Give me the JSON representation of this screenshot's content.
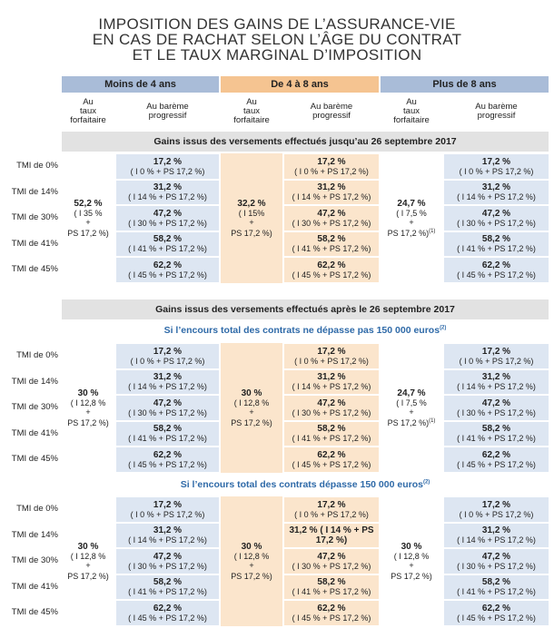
{
  "title": {
    "line1": "IMPOSITION DES GAINS DE L’ASSURANCE-VIE",
    "line2": "EN CAS DE RACHAT SELON L’ÂGE DU CONTRAT",
    "line3": "ET LE TAUX MARGINAL D’IMPOSITION"
  },
  "groups": [
    "Moins de 4 ans",
    "De 4 à 8 ans",
    "Plus de 8 ans"
  ],
  "col_forf": [
    "Au",
    "taux",
    "forfaitaire"
  ],
  "col_prog": [
    "Au barème",
    "progressif"
  ],
  "tmi_labels": [
    "TMI de 0%",
    "TMI de 14%",
    "TMI de 30%",
    "TMI de 41%",
    "TMI de 45%"
  ],
  "prog_values": [
    {
      "v": "17,2 %",
      "d": "( I 0 % + PS 17,2 %)"
    },
    {
      "v": "31,2 %",
      "d": "( I 14 % + PS 17,2 %)"
    },
    {
      "v": "47,2 %",
      "d": "( I 30 % + PS 17,2 %)"
    },
    {
      "v": "58,2 %",
      "d": "( I 41 % + PS 17,2 %)"
    },
    {
      "v": "62,2 %",
      "d": "( I 45 % + PS 17,2 %)"
    }
  ],
  "s1": {
    "heading": "Gains issus des versements effectués jusqu’au 26 septembre 2017",
    "forf": [
      {
        "v": "52,2 %",
        "a": "( I 35 %",
        "b": "+",
        "c": "PS 17,2 %)",
        "note": ""
      },
      {
        "v": "32,2 %",
        "a": "( I 15%",
        "b": "+",
        "c": "PS 17,2 %)",
        "note": ""
      },
      {
        "v": "24,7 %",
        "a": "( I 7,5 %",
        "b": "+",
        "c": "PS 17,2 %)",
        "note": "(1)"
      }
    ]
  },
  "s2": {
    "heading": "Gains issus des versements effectués après le 26 septembre 2017",
    "sub_a": "Si l’encours total des contrats ne dépasse pas 150 000 euros",
    "sub_a_note": "(2)",
    "forf_a": [
      {
        "v": "30 %",
        "a": "( I 12,8 %",
        "b": "+",
        "c": "PS 17,2 %)",
        "note": ""
      },
      {
        "v": "30 %",
        "a": "( I 12,8 %",
        "b": "+",
        "c": "PS 17,2 %)",
        "note": ""
      },
      {
        "v": "24,7 %",
        "a": "( I 7,5 %",
        "b": "+",
        "c": "PS 17,2 %)",
        "note": "(1)"
      }
    ],
    "sub_b": "Si l’encours total des contrats dépasse 150 000 euros",
    "sub_b_note": "(2)",
    "forf_b": [
      {
        "v": "30 %",
        "a": "( I 12,8 %",
        "b": "+",
        "c": "PS 17,2 %)",
        "note": ""
      },
      {
        "v": "30 %",
        "a": "( I 12,8 %",
        "b": "+",
        "c": "PS 17,2 %)",
        "note": ""
      },
      {
        "v": "30 %",
        "a": "( I 12,8 %",
        "b": "+",
        "c": "PS 17,2 %)",
        "note": ""
      }
    ],
    "special_14": "31,2 % ( I 14 % + PS 17,2 %)"
  }
}
